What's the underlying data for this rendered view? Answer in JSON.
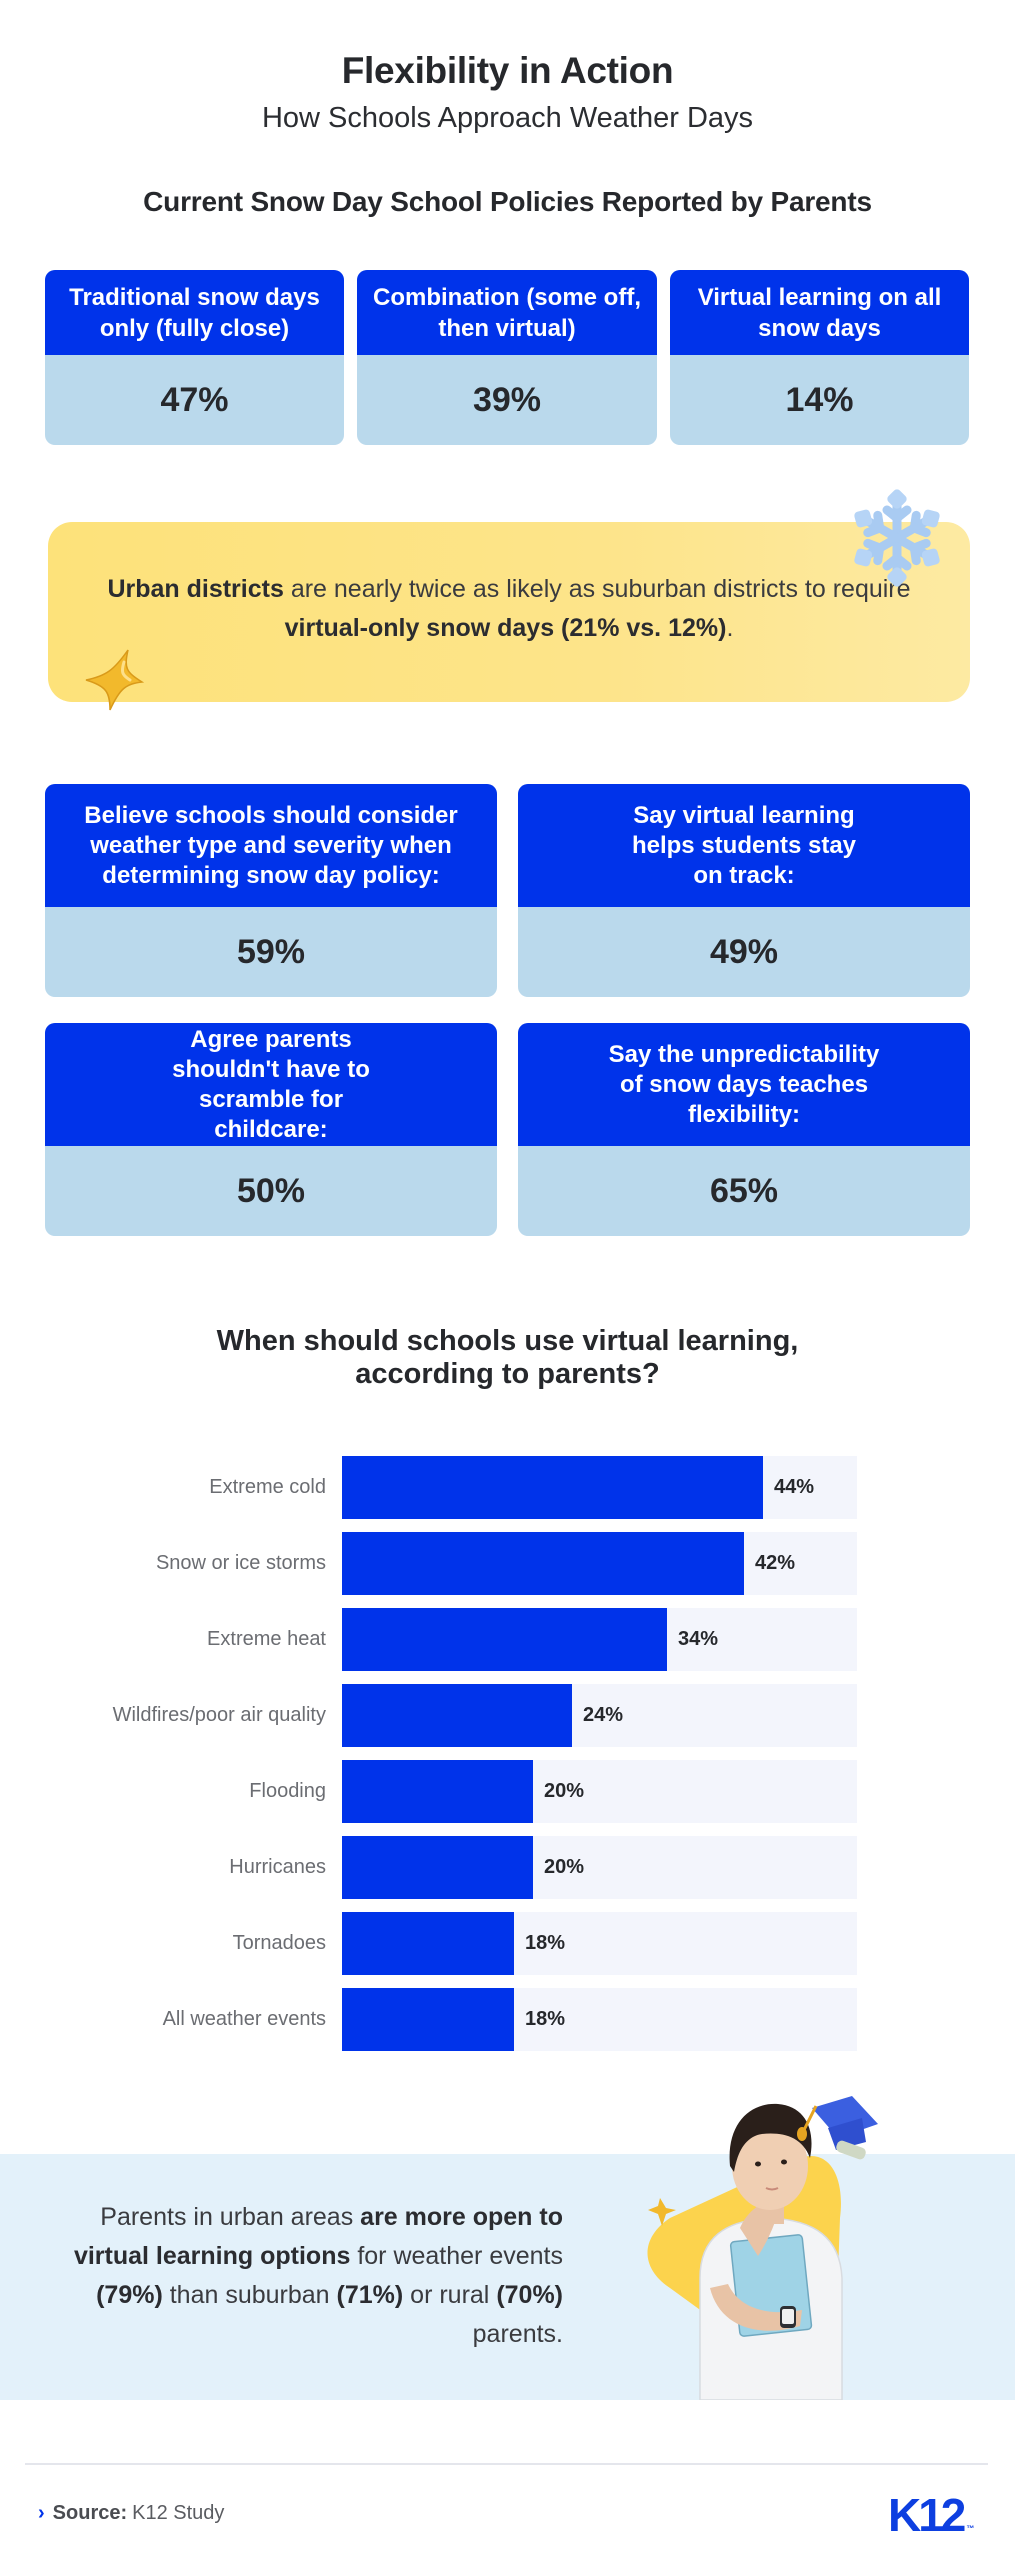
{
  "header": {
    "title": "Flexibility in Action",
    "subtitle": "How Schools Approach Weather Days"
  },
  "policies": {
    "title": "Current Snow Day School Policies Reported by Parents",
    "cards": [
      {
        "label": "Traditional snow days only (fully close)",
        "value": "47%"
      },
      {
        "label": "Combination (some off, then virtual)",
        "value": "39%"
      },
      {
        "label": "Virtual learning on all snow days",
        "value": "14%"
      }
    ]
  },
  "callout": {
    "bold1": "Urban districts",
    "text1": " are nearly twice as likely as suburban districts to require ",
    "bold2": "virtual-only snow days (21% vs. 12%)",
    "text2": ".",
    "icons": [
      "snowflake-icon",
      "star-icon"
    ]
  },
  "opinions": {
    "cards": [
      {
        "label": "Believe schools should consider weather type and severity when determining snow day policy:",
        "value": "59%"
      },
      {
        "label": "Say virtual learning helps students stay on track:",
        "value": "49%"
      },
      {
        "label": "Agree parents shouldn't have to scramble for childcare:",
        "value": "50%"
      },
      {
        "label": "Say the unpredictability of snow days teaches flexibility:",
        "value": "65%"
      }
    ]
  },
  "chart_data": {
    "type": "bar",
    "orientation": "horizontal",
    "title": "When should schools use virtual learning, according to parents?",
    "categories": [
      "Extreme cold",
      "Snow or ice storms",
      "Extreme heat",
      "Wildfires/poor air quality",
      "Flooding",
      "Hurricanes",
      "Tornadoes",
      "All weather events"
    ],
    "values": [
      44,
      42,
      34,
      24,
      20,
      20,
      18,
      18
    ],
    "value_labels": [
      "44%",
      "42%",
      "34%",
      "24%",
      "20%",
      "20%",
      "18%",
      "18%"
    ],
    "xlabel": "",
    "ylabel": "",
    "xlim": [
      0,
      53.8
    ],
    "grid": false,
    "legend": "none",
    "bar_color": "#0033ea",
    "track_color": "#f3f5fc"
  },
  "band": {
    "t1": "Parents in urban areas ",
    "b1": "are more open to virtual learning options",
    "t2": " for weather events ",
    "b2": "(79%)",
    "t3": " than suburban ",
    "b3": "(71%)",
    "t4": " or rural ",
    "b4": "(70%)",
    "t5": " parents.",
    "image": "student-with-books-illustration"
  },
  "footer": {
    "source_label": "Source:",
    "source_value": "K12 Study",
    "logo": "K12",
    "logo_tm": "™"
  },
  "colors": {
    "brand_blue": "#0033ea",
    "card_value_bg": "#bad9ec",
    "callout_yellow": "#fde27a",
    "band_bg": "#e3f1fa"
  }
}
